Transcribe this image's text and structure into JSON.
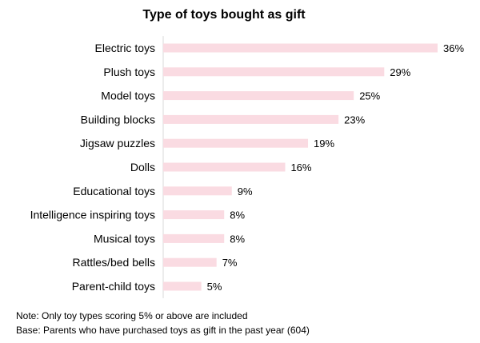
{
  "chart_data": {
    "type": "bar",
    "orientation": "horizontal",
    "title": "Type of toys bought as gift",
    "categories": [
      "Electric toys",
      "Plush toys",
      "Model toys",
      "Building blocks",
      "Jigsaw puzzles",
      "Dolls",
      "Educational toys",
      "Intelligence inspiring toys",
      "Musical toys",
      "Rattles/bed bells",
      "Parent-child toys"
    ],
    "values": [
      36,
      29,
      25,
      23,
      19,
      16,
      9,
      8,
      8,
      7,
      5
    ],
    "value_suffix": "%",
    "xlabel": "",
    "ylabel": "",
    "xlim": [
      0,
      36
    ],
    "grid": false,
    "legend": "none",
    "bar_color": "#fadbe2"
  },
  "notes": {
    "note": "Note: Only toy types scoring 5% or above are included",
    "base": "Base: Parents who have purchased toys as gift in the past year (604)"
  }
}
